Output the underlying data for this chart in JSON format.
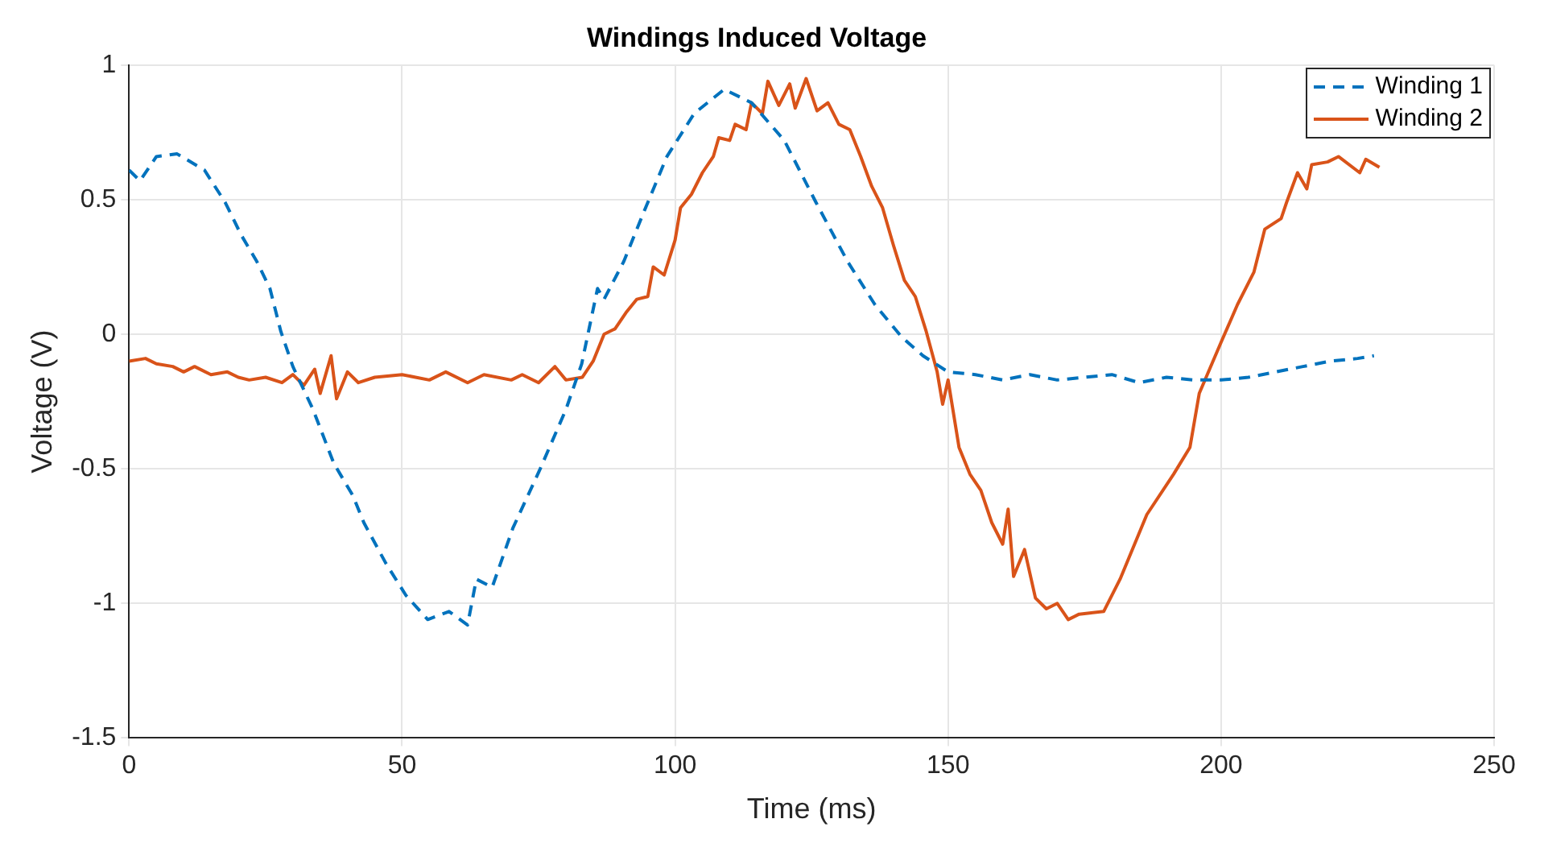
{
  "chart_data": {
    "type": "line",
    "title": "Windings Induced Voltage",
    "xlabel": "Time (ms)",
    "ylabel": "Voltage (V)",
    "xlim": [
      0,
      250
    ],
    "ylim": [
      -1.5,
      1
    ],
    "xticks": [
      0,
      50,
      100,
      150,
      200,
      250
    ],
    "yticks": [
      -1.5,
      -1,
      -0.5,
      0,
      0.5,
      1
    ],
    "grid": true,
    "legend": "top right",
    "series": [
      {
        "name": "Winding 1",
        "color": "#0072bd",
        "line_style": "dashed",
        "x": [
          0,
          2,
          5,
          8.8,
          13.8,
          17.6,
          20.5,
          23.4,
          25.8,
          27.8,
          30,
          33.7,
          37.5,
          41,
          43,
          47,
          50.7,
          54.7,
          58.6,
          62,
          63.6,
          66.5,
          70.3,
          75.3,
          80,
          82.9,
          85.8,
          87,
          90.6,
          94.6,
          98.5,
          103.5,
          109,
          114,
          120,
          125.8,
          131.6,
          136.6,
          141.5,
          145.4,
          150,
          155,
          160,
          165,
          170,
          175,
          180,
          185,
          190,
          195,
          200,
          205,
          210,
          215,
          220,
          225,
          228
        ],
        "values": [
          0.61,
          0.57,
          0.66,
          0.67,
          0.61,
          0.49,
          0.37,
          0.27,
          0.17,
          0.01,
          -0.12,
          -0.28,
          -0.48,
          -0.6,
          -0.7,
          -0.85,
          -0.97,
          -1.06,
          -1.03,
          -1.08,
          -0.91,
          -0.94,
          -0.72,
          -0.5,
          -0.28,
          -0.11,
          0.17,
          0.13,
          0.27,
          0.47,
          0.66,
          0.82,
          0.91,
          0.86,
          0.72,
          0.49,
          0.27,
          0.11,
          -0.01,
          -0.08,
          -0.14,
          -0.15,
          -0.17,
          -0.15,
          -0.17,
          -0.16,
          -0.15,
          -0.18,
          -0.16,
          -0.17,
          -0.17,
          -0.16,
          -0.14,
          -0.12,
          -0.1,
          -0.09,
          -0.08
        ]
      },
      {
        "name": "Winding 2",
        "color": "#d95319",
        "line_style": "solid",
        "x": [
          0,
          3,
          5,
          8,
          10,
          12,
          15,
          18,
          20,
          22,
          25,
          28,
          30,
          32,
          34,
          35,
          37,
          38,
          40,
          42,
          45,
          50,
          55,
          58,
          62,
          65,
          70,
          72,
          75,
          78,
          80,
          83,
          85,
          87,
          89,
          91,
          93,
          95,
          96,
          98,
          100,
          101,
          103,
          105,
          107,
          108,
          110,
          111,
          113,
          114,
          116,
          117,
          119,
          121,
          122,
          124,
          126,
          128,
          130,
          132,
          134,
          136,
          138,
          140,
          142,
          144,
          146,
          148,
          149,
          150,
          152,
          154,
          156,
          158,
          160,
          161,
          162,
          164,
          166,
          168,
          170,
          172,
          174,
          178.5,
          181.5,
          186.4,
          191.3,
          194.3,
          196,
          200,
          203,
          206,
          208,
          211,
          212,
          214,
          215.7,
          216.6,
          219.5,
          221.5,
          225.4,
          226.5,
          229
        ],
        "values": [
          -0.1,
          -0.09,
          -0.11,
          -0.12,
          -0.14,
          -0.12,
          -0.15,
          -0.14,
          -0.16,
          -0.17,
          -0.16,
          -0.18,
          -0.15,
          -0.19,
          -0.13,
          -0.22,
          -0.08,
          -0.24,
          -0.14,
          -0.18,
          -0.16,
          -0.15,
          -0.17,
          -0.14,
          -0.18,
          -0.15,
          -0.17,
          -0.15,
          -0.18,
          -0.12,
          -0.17,
          -0.16,
          -0.1,
          0,
          0.02,
          0.08,
          0.13,
          0.14,
          0.25,
          0.22,
          0.35,
          0.47,
          0.52,
          0.6,
          0.66,
          0.73,
          0.72,
          0.78,
          0.76,
          0.86,
          0.82,
          0.94,
          0.85,
          0.93,
          0.84,
          0.95,
          0.83,
          0.86,
          0.78,
          0.76,
          0.66,
          0.55,
          0.47,
          0.33,
          0.2,
          0.14,
          0.01,
          -0.14,
          -0.26,
          -0.17,
          -0.42,
          -0.52,
          -0.58,
          -0.7,
          -0.78,
          -0.65,
          -0.9,
          -0.8,
          -0.98,
          -1.02,
          -1,
          -1.06,
          -1.04,
          -1.03,
          -0.91,
          -0.67,
          -0.52,
          -0.42,
          -0.22,
          -0.03,
          0.11,
          0.23,
          0.39,
          0.43,
          0.49,
          0.6,
          0.54,
          0.63,
          0.64,
          0.66,
          0.6,
          0.65,
          0.62
        ]
      }
    ]
  }
}
